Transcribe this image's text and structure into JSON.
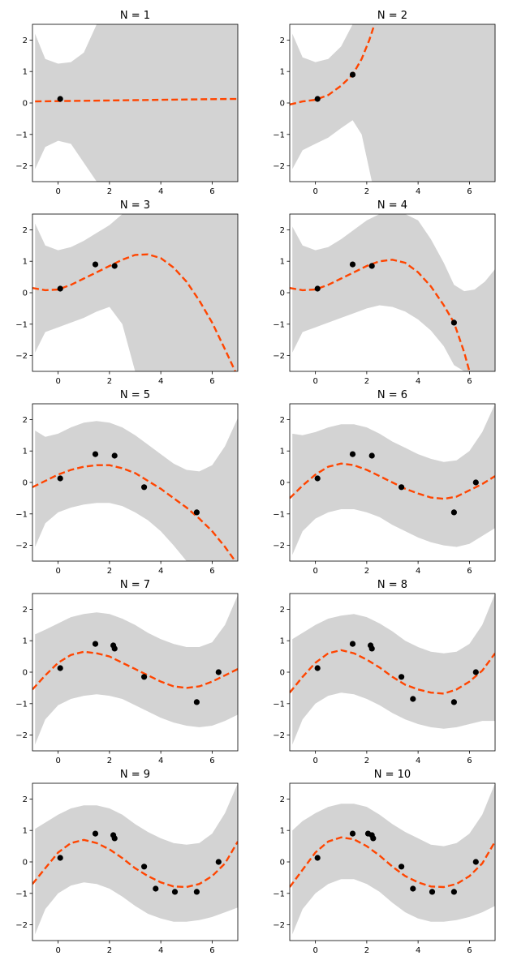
{
  "chart_data": [
    {
      "type": "line",
      "title": "N = 1",
      "xlim": [
        -1,
        7
      ],
      "ylim": [
        -2.5,
        2.5
      ],
      "xticks": [
        0,
        2,
        4,
        6
      ],
      "yticks": [
        -2,
        -1,
        0,
        1,
        2
      ],
      "xlabel": "",
      "ylabel": "",
      "grid": false,
      "points": {
        "x": [
          0.08
        ],
        "y": [
          0.13
        ]
      },
      "mean": {
        "x": [
          -0.9,
          0,
          1,
          2,
          3,
          4,
          5,
          6,
          7
        ],
        "y": [
          0.05,
          0.06,
          0.07,
          0.08,
          0.09,
          0.1,
          0.11,
          0.12,
          0.13
        ]
      },
      "band": {
        "x": [
          -0.9,
          -0.5,
          0,
          0.5,
          1.0,
          1.5,
          7.0
        ],
        "lower": [
          -2.1,
          -1.4,
          -1.2,
          -1.3,
          -1.9,
          -2.5,
          -2.5
        ],
        "upper": [
          2.2,
          1.4,
          1.25,
          1.3,
          1.6,
          2.5,
          2.5
        ]
      }
    },
    {
      "type": "line",
      "title": "N = 2",
      "xlim": [
        -1,
        7
      ],
      "ylim": [
        -2.5,
        2.5
      ],
      "xticks": [
        0,
        2,
        4,
        6
      ],
      "yticks": [
        -2,
        -1,
        0,
        1,
        2
      ],
      "xlabel": "",
      "ylabel": "",
      "grid": false,
      "points": {
        "x": [
          0.08,
          1.45
        ],
        "y": [
          0.13,
          0.9
        ]
      },
      "mean": {
        "x": [
          -1.0,
          -0.5,
          0,
          0.5,
          1.0,
          1.45,
          1.8,
          2.1,
          2.3
        ],
        "y": [
          -0.05,
          0.05,
          0.1,
          0.25,
          0.55,
          0.9,
          1.4,
          2.0,
          2.5
        ]
      },
      "band": {
        "x": [
          -0.9,
          -0.5,
          0,
          0.5,
          1.0,
          1.45,
          1.8,
          2.2,
          7.0
        ],
        "lower": [
          -2.1,
          -1.5,
          -1.3,
          -1.1,
          -0.8,
          -0.55,
          -1.0,
          -2.5,
          -2.5
        ],
        "upper": [
          2.2,
          1.45,
          1.3,
          1.4,
          1.8,
          2.5,
          2.5,
          2.5,
          2.5
        ]
      }
    },
    {
      "type": "line",
      "title": "N = 3",
      "xlim": [
        -1,
        7
      ],
      "ylim": [
        -2.5,
        2.5
      ],
      "xticks": [
        0,
        2,
        4,
        6
      ],
      "yticks": [
        -2,
        -1,
        0,
        1,
        2
      ],
      "xlabel": "",
      "ylabel": "",
      "grid": false,
      "points": {
        "x": [
          0.08,
          1.45,
          2.2
        ],
        "y": [
          0.13,
          0.9,
          0.85
        ]
      },
      "mean": {
        "x": [
          -1.0,
          -0.5,
          0,
          0.5,
          1.0,
          1.5,
          2.0,
          2.5,
          3.0,
          3.5,
          4.0,
          4.5,
          5.0,
          5.5,
          6.0,
          6.5,
          6.9
        ],
        "y": [
          0.15,
          0.08,
          0.1,
          0.25,
          0.45,
          0.65,
          0.85,
          1.05,
          1.2,
          1.22,
          1.1,
          0.8,
          0.35,
          -0.25,
          -0.95,
          -1.8,
          -2.5
        ]
      },
      "band": {
        "x": [
          -0.9,
          -0.5,
          0,
          0.5,
          1.0,
          1.5,
          2.0,
          2.5,
          3.0,
          7.0
        ],
        "lower": [
          -1.9,
          -1.25,
          -1.1,
          -0.95,
          -0.8,
          -0.6,
          -0.45,
          -1.0,
          -2.5,
          -2.5
        ],
        "upper": [
          2.2,
          1.5,
          1.35,
          1.45,
          1.65,
          1.9,
          2.15,
          2.5,
          2.5,
          2.5
        ]
      }
    },
    {
      "type": "line",
      "title": "N = 4",
      "xlim": [
        -1,
        7
      ],
      "ylim": [
        -2.5,
        2.5
      ],
      "xticks": [
        0,
        2,
        4,
        6
      ],
      "yticks": [
        -2,
        -1,
        0,
        1,
        2
      ],
      "xlabel": "",
      "ylabel": "",
      "grid": false,
      "points": {
        "x": [
          0.08,
          1.45,
          2.2,
          5.4
        ],
        "y": [
          0.13,
          0.9,
          0.85,
          -0.95
        ]
      },
      "mean": {
        "x": [
          -1.0,
          -0.5,
          0,
          0.5,
          1.0,
          1.5,
          2.0,
          2.5,
          3.0,
          3.5,
          4.0,
          4.5,
          5.0,
          5.4,
          5.8,
          6.0
        ],
        "y": [
          0.15,
          0.08,
          0.1,
          0.25,
          0.45,
          0.65,
          0.85,
          1.0,
          1.05,
          0.95,
          0.65,
          0.2,
          -0.4,
          -0.95,
          -1.9,
          -2.5
        ]
      },
      "band": {
        "x": [
          -0.9,
          -0.5,
          0,
          0.5,
          1.0,
          1.5,
          2.0,
          2.5,
          3.0,
          3.5,
          4.0,
          4.5,
          5.0,
          5.4,
          5.8,
          6.2,
          6.6,
          7.0
        ],
        "lower": [
          -1.9,
          -1.25,
          -1.1,
          -0.95,
          -0.8,
          -0.65,
          -0.5,
          -0.4,
          -0.45,
          -0.6,
          -0.85,
          -1.2,
          -1.7,
          -2.3,
          -2.5,
          -2.5,
          -2.5,
          -2.5
        ],
        "upper": [
          2.1,
          1.5,
          1.35,
          1.45,
          1.7,
          2.0,
          2.3,
          2.5,
          2.5,
          2.5,
          2.3,
          1.7,
          0.95,
          0.25,
          0.05,
          0.1,
          0.35,
          0.75
        ]
      }
    },
    {
      "type": "line",
      "title": "N = 5",
      "xlim": [
        -1,
        7
      ],
      "ylim": [
        -2.5,
        2.5
      ],
      "xticks": [
        0,
        2,
        4,
        6
      ],
      "yticks": [
        -2,
        -1,
        0,
        1,
        2
      ],
      "xlabel": "",
      "ylabel": "",
      "grid": false,
      "points": {
        "x": [
          0.08,
          1.45,
          2.2,
          3.35,
          5.4
        ],
        "y": [
          0.13,
          0.9,
          0.85,
          -0.15,
          -0.95
        ]
      },
      "mean": {
        "x": [
          -1.0,
          -0.5,
          0,
          0.5,
          1.0,
          1.5,
          2.0,
          2.5,
          3.0,
          3.5,
          4.0,
          4.5,
          5.0,
          5.5,
          6.0,
          6.5,
          6.9
        ],
        "y": [
          -0.15,
          0.05,
          0.25,
          0.4,
          0.5,
          0.55,
          0.55,
          0.45,
          0.3,
          0.05,
          -0.2,
          -0.5,
          -0.8,
          -1.15,
          -1.55,
          -2.05,
          -2.5
        ]
      },
      "band": {
        "x": [
          -0.9,
          -0.5,
          0,
          0.5,
          1.0,
          1.5,
          2.0,
          2.5,
          3.0,
          3.5,
          4.0,
          4.5,
          5.0,
          5.5,
          6.0,
          6.5,
          7.0
        ],
        "lower": [
          -2.05,
          -1.3,
          -0.95,
          -0.8,
          -0.7,
          -0.65,
          -0.65,
          -0.75,
          -0.95,
          -1.2,
          -1.55,
          -2.0,
          -2.5,
          -2.5,
          -2.5,
          -2.5,
          -2.5
        ],
        "upper": [
          1.65,
          1.45,
          1.55,
          1.75,
          1.9,
          1.95,
          1.9,
          1.75,
          1.5,
          1.2,
          0.9,
          0.6,
          0.4,
          0.35,
          0.55,
          1.15,
          2.05
        ]
      }
    },
    {
      "type": "line",
      "title": "N = 6",
      "xlim": [
        -1,
        7
      ],
      "ylim": [
        -2.5,
        2.5
      ],
      "xticks": [
        0,
        2,
        4,
        6
      ],
      "yticks": [
        -2,
        -1,
        0,
        1,
        2
      ],
      "xlabel": "",
      "ylabel": "",
      "grid": false,
      "points": {
        "x": [
          0.08,
          1.45,
          2.2,
          3.35,
          5.4,
          6.25
        ],
        "y": [
          0.13,
          0.9,
          0.85,
          -0.15,
          -0.95,
          0.0
        ]
      },
      "mean": {
        "x": [
          -1.0,
          -0.5,
          0,
          0.5,
          1.0,
          1.5,
          2.0,
          2.5,
          3.0,
          3.5,
          4.0,
          4.5,
          5.0,
          5.5,
          6.0,
          6.5,
          7.0
        ],
        "y": [
          -0.5,
          -0.1,
          0.25,
          0.5,
          0.6,
          0.55,
          0.4,
          0.2,
          0.0,
          -0.2,
          -0.35,
          -0.48,
          -0.52,
          -0.45,
          -0.25,
          -0.05,
          0.2
        ]
      },
      "band": {
        "x": [
          -0.9,
          -0.5,
          0,
          0.5,
          1.0,
          1.5,
          2.0,
          2.5,
          3.0,
          3.5,
          4.0,
          4.5,
          5.0,
          5.5,
          6.0,
          6.5,
          7.0
        ],
        "lower": [
          -2.3,
          -1.55,
          -1.15,
          -0.95,
          -0.85,
          -0.85,
          -0.95,
          -1.1,
          -1.35,
          -1.55,
          -1.75,
          -1.9,
          -2.0,
          -2.05,
          -1.95,
          -1.7,
          -1.45
        ],
        "upper": [
          1.55,
          1.5,
          1.6,
          1.75,
          1.85,
          1.85,
          1.75,
          1.55,
          1.3,
          1.1,
          0.9,
          0.75,
          0.65,
          0.7,
          1.0,
          1.6,
          2.5
        ]
      }
    },
    {
      "type": "line",
      "title": "N = 7",
      "xlim": [
        -1,
        7
      ],
      "ylim": [
        -2.5,
        2.5
      ],
      "xticks": [
        0,
        2,
        4,
        6
      ],
      "yticks": [
        -2,
        -1,
        0,
        1,
        2
      ],
      "xlabel": "",
      "ylabel": "",
      "grid": false,
      "points": {
        "x": [
          0.08,
          1.45,
          2.15,
          2.2,
          3.35,
          5.4,
          6.25
        ],
        "y": [
          0.13,
          0.9,
          0.85,
          0.75,
          -0.15,
          -0.95,
          0.0
        ]
      },
      "mean": {
        "x": [
          -1.0,
          -0.5,
          0,
          0.5,
          1.0,
          1.5,
          2.0,
          2.5,
          3.0,
          3.5,
          4.0,
          4.5,
          5.0,
          5.5,
          6.0,
          6.5,
          7.0
        ],
        "y": [
          -0.55,
          -0.1,
          0.3,
          0.55,
          0.65,
          0.6,
          0.5,
          0.3,
          0.1,
          -0.1,
          -0.3,
          -0.45,
          -0.5,
          -0.45,
          -0.3,
          -0.1,
          0.1
        ]
      },
      "band": {
        "x": [
          -0.9,
          -0.5,
          0,
          0.5,
          1.0,
          1.5,
          2.0,
          2.5,
          3.0,
          3.5,
          4.0,
          4.5,
          5.0,
          5.5,
          6.0,
          6.5,
          7.0
        ],
        "lower": [
          -2.3,
          -1.5,
          -1.05,
          -0.85,
          -0.75,
          -0.7,
          -0.75,
          -0.85,
          -1.05,
          -1.25,
          -1.45,
          -1.6,
          -1.7,
          -1.75,
          -1.7,
          -1.55,
          -1.35
        ],
        "upper": [
          1.2,
          1.35,
          1.55,
          1.75,
          1.85,
          1.9,
          1.85,
          1.7,
          1.5,
          1.25,
          1.05,
          0.9,
          0.8,
          0.8,
          0.95,
          1.5,
          2.45
        ]
      }
    },
    {
      "type": "line",
      "title": "N = 8",
      "xlim": [
        -1,
        7
      ],
      "ylim": [
        -2.5,
        2.5
      ],
      "xticks": [
        0,
        2,
        4,
        6
      ],
      "yticks": [
        -2,
        -1,
        0,
        1,
        2
      ],
      "xlabel": "",
      "ylabel": "",
      "grid": false,
      "points": {
        "x": [
          0.08,
          1.45,
          2.15,
          2.2,
          3.35,
          3.8,
          5.4,
          6.25
        ],
        "y": [
          0.13,
          0.9,
          0.85,
          0.75,
          -0.15,
          -0.85,
          -0.95,
          0.0
        ]
      },
      "mean": {
        "x": [
          -1.0,
          -0.5,
          0,
          0.5,
          1.0,
          1.5,
          2.0,
          2.5,
          3.0,
          3.5,
          4.0,
          4.5,
          5.0,
          5.5,
          6.0,
          6.5,
          7.0
        ],
        "y": [
          -0.65,
          -0.15,
          0.3,
          0.6,
          0.7,
          0.6,
          0.4,
          0.15,
          -0.15,
          -0.4,
          -0.55,
          -0.65,
          -0.68,
          -0.55,
          -0.3,
          0.05,
          0.6
        ]
      },
      "band": {
        "x": [
          -0.9,
          -0.5,
          0,
          0.5,
          1.0,
          1.5,
          2.0,
          2.5,
          3.0,
          3.5,
          4.0,
          4.5,
          5.0,
          5.5,
          6.0,
          6.5,
          7.0
        ],
        "lower": [
          -2.3,
          -1.5,
          -1.0,
          -0.75,
          -0.65,
          -0.7,
          -0.85,
          -1.05,
          -1.3,
          -1.5,
          -1.65,
          -1.75,
          -1.8,
          -1.75,
          -1.65,
          -1.55,
          -1.55
        ],
        "upper": [
          1.05,
          1.25,
          1.5,
          1.7,
          1.8,
          1.85,
          1.75,
          1.55,
          1.3,
          1.0,
          0.8,
          0.65,
          0.6,
          0.65,
          0.9,
          1.5,
          2.5
        ]
      }
    },
    {
      "type": "line",
      "title": "N = 9",
      "xlim": [
        -1,
        7
      ],
      "ylim": [
        -2.5,
        2.5
      ],
      "xticks": [
        0,
        2,
        4,
        6
      ],
      "yticks": [
        -2,
        -1,
        0,
        1,
        2
      ],
      "xlabel": "",
      "ylabel": "",
      "grid": false,
      "points": {
        "x": [
          0.08,
          1.45,
          2.15,
          2.2,
          3.35,
          3.8,
          4.55,
          5.4,
          6.25
        ],
        "y": [
          0.13,
          0.9,
          0.85,
          0.75,
          -0.15,
          -0.85,
          -0.95,
          -0.95,
          0.0
        ]
      },
      "mean": {
        "x": [
          -1.0,
          -0.5,
          0,
          0.5,
          1.0,
          1.5,
          2.0,
          2.5,
          3.0,
          3.5,
          4.0,
          4.5,
          5.0,
          5.5,
          6.0,
          6.5,
          7.0
        ],
        "y": [
          -0.7,
          -0.2,
          0.3,
          0.6,
          0.7,
          0.6,
          0.4,
          0.12,
          -0.2,
          -0.45,
          -0.65,
          -0.78,
          -0.8,
          -0.7,
          -0.45,
          -0.05,
          0.65
        ]
      },
      "band": {
        "x": [
          -0.9,
          -0.5,
          0,
          0.5,
          1.0,
          1.5,
          2.0,
          2.5,
          3.0,
          3.5,
          4.0,
          4.5,
          5.0,
          5.5,
          6.0,
          6.5,
          7.0
        ],
        "lower": [
          -2.3,
          -1.5,
          -1.0,
          -0.75,
          -0.65,
          -0.7,
          -0.85,
          -1.1,
          -1.4,
          -1.65,
          -1.8,
          -1.9,
          -1.9,
          -1.85,
          -1.75,
          -1.6,
          -1.45
        ],
        "upper": [
          1.05,
          1.25,
          1.5,
          1.7,
          1.8,
          1.8,
          1.7,
          1.5,
          1.2,
          0.95,
          0.75,
          0.6,
          0.55,
          0.6,
          0.9,
          1.55,
          2.5
        ]
      }
    },
    {
      "type": "line",
      "title": "N = 10",
      "xlim": [
        -1,
        7
      ],
      "ylim": [
        -2.5,
        2.5
      ],
      "xticks": [
        0,
        2,
        4,
        6
      ],
      "yticks": [
        -2,
        -1,
        0,
        1,
        2
      ],
      "xlabel": "",
      "ylabel": "",
      "grid": false,
      "points": {
        "x": [
          0.08,
          1.45,
          2.05,
          2.2,
          2.25,
          3.35,
          3.8,
          4.55,
          5.4,
          6.25
        ],
        "y": [
          0.13,
          0.9,
          0.9,
          0.85,
          0.75,
          -0.15,
          -0.85,
          -0.95,
          -0.95,
          0.0
        ]
      },
      "mean": {
        "x": [
          -1.0,
          -0.5,
          0,
          0.5,
          1.0,
          1.5,
          2.0,
          2.5,
          3.0,
          3.5,
          4.0,
          4.5,
          5.0,
          5.5,
          6.0,
          6.5,
          7.0
        ],
        "y": [
          -0.8,
          -0.25,
          0.3,
          0.65,
          0.78,
          0.72,
          0.5,
          0.2,
          -0.15,
          -0.45,
          -0.65,
          -0.78,
          -0.8,
          -0.7,
          -0.45,
          -0.05,
          0.65
        ]
      },
      "band": {
        "x": [
          -0.9,
          -0.5,
          0,
          0.5,
          1.0,
          1.5,
          2.0,
          2.5,
          3.0,
          3.5,
          4.0,
          4.5,
          5.0,
          5.5,
          6.0,
          6.5,
          7.0
        ],
        "lower": [
          -2.3,
          -1.5,
          -1.0,
          -0.7,
          -0.55,
          -0.55,
          -0.7,
          -0.95,
          -1.3,
          -1.6,
          -1.8,
          -1.9,
          -1.9,
          -1.85,
          -1.75,
          -1.6,
          -1.4
        ],
        "upper": [
          1.0,
          1.3,
          1.55,
          1.75,
          1.85,
          1.85,
          1.75,
          1.5,
          1.2,
          0.95,
          0.75,
          0.55,
          0.5,
          0.6,
          0.9,
          1.5,
          2.5
        ]
      }
    }
  ],
  "colors": {
    "mean_line": "#ff4500",
    "band": "#d3d3d3",
    "point": "#000000",
    "axis": "#000000"
  }
}
